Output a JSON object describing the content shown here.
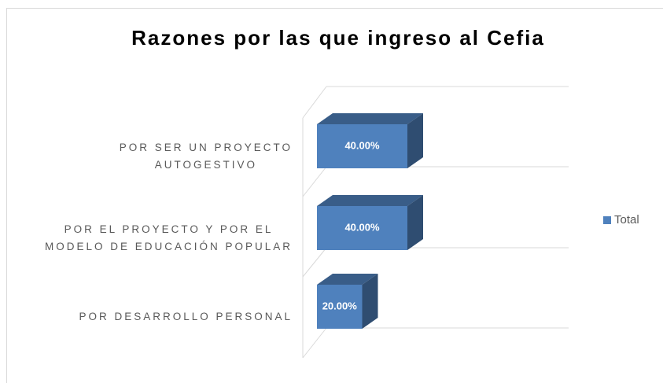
{
  "chart_data": {
    "type": "bar3d",
    "title": "Razones por las que ingreso al Cefia",
    "categories": [
      "POR SER UN PROYECTO AUTOGESTIVO",
      "POR EL PROYECTO Y POR EL MODELO DE EDUCACIÓN POPULAR",
      "POR DESARROLLO PERSONAL"
    ],
    "series": [
      {
        "name": "Total",
        "color": "#4f81bd",
        "values": [
          40,
          40,
          20
        ],
        "value_labels": [
          "40.00%",
          "40.00%",
          "20.00%"
        ]
      }
    ],
    "legend": "right",
    "grid": true
  }
}
